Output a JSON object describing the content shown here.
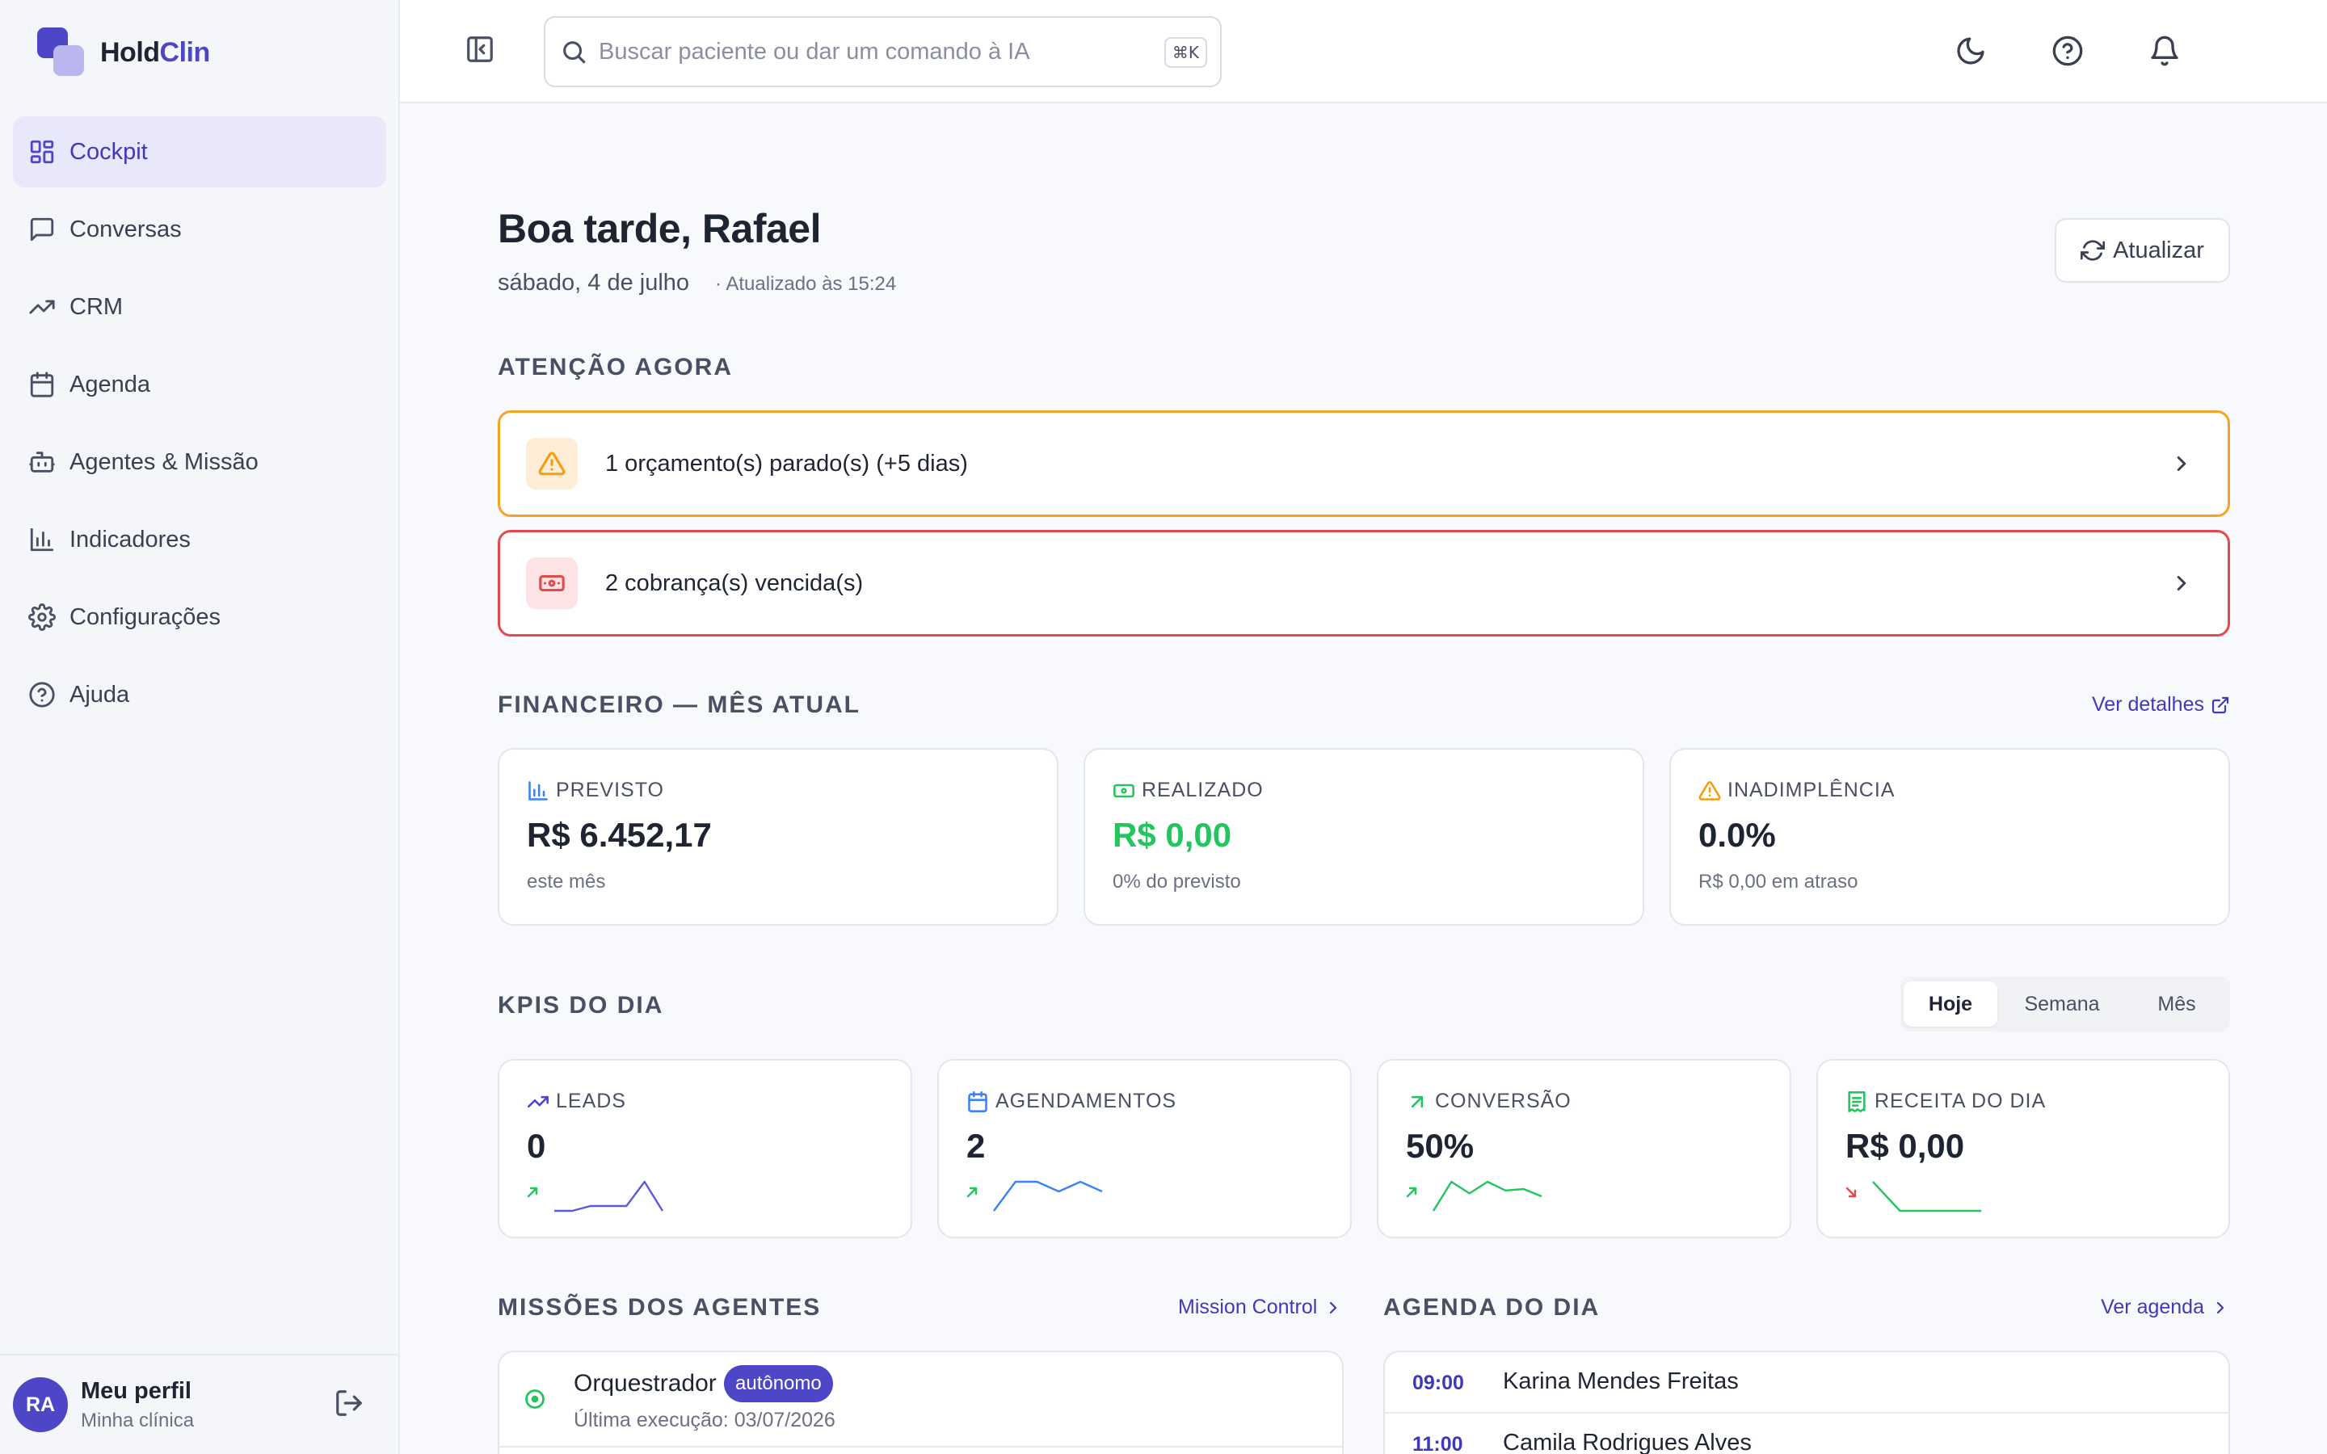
{
  "brand": {
    "name_part1": "Hold",
    "name_part2": "Clin"
  },
  "sidebar": {
    "items": [
      {
        "label": "Cockpit",
        "icon": "layout-dashboard-icon",
        "active": true
      },
      {
        "label": "Conversas",
        "icon": "message-square-icon"
      },
      {
        "label": "CRM",
        "icon": "trending-up-icon"
      },
      {
        "label": "Agenda",
        "icon": "calendar-icon"
      },
      {
        "label": "Agentes & Missão",
        "icon": "bot-icon"
      },
      {
        "label": "Indicadores",
        "icon": "bar-chart-icon"
      },
      {
        "label": "Configurações",
        "icon": "gear-icon"
      },
      {
        "label": "Ajuda",
        "icon": "help-circle-icon"
      }
    ],
    "profile": {
      "initials": "RA",
      "name": "Meu perfil",
      "clinic": "Minha clínica"
    }
  },
  "topbar": {
    "search_placeholder": "Buscar paciente ou dar um comando à IA",
    "search_value": "",
    "shortcut": "⌘K"
  },
  "header": {
    "greeting": "Boa tarde, Rafael",
    "date": "sábado, 4 de julho",
    "updated": "· Atualizado às 15:24",
    "refresh_label": "Atualizar"
  },
  "attention": {
    "title": "ATENÇÃO AGORA",
    "alerts": [
      {
        "text": "1 orçamento(s) parado(s) (+5 dias)",
        "level": "warning",
        "icon": "alert-triangle-icon"
      },
      {
        "text": "2 cobrança(s) vencida(s)",
        "level": "danger",
        "icon": "banknote-icon"
      }
    ]
  },
  "finance": {
    "title": "FINANCEIRO — MÊS ATUAL",
    "link": "Ver detalhes",
    "cards": [
      {
        "label": "PREVISTO",
        "value": "R$ 6.452,17",
        "sub": "este mês",
        "color": "#1f2433",
        "icon_color": "#3b82f6"
      },
      {
        "label": "REALIZADO",
        "value": "R$ 0,00",
        "sub": "0% do previsto",
        "color": "#22c55e",
        "icon_color": "#22c55e"
      },
      {
        "label": "INADIMPLÊNCIA",
        "value": "0.0%",
        "sub": "R$ 0,00 em atraso",
        "color": "#1f2433",
        "icon_color": "#f59e0b"
      }
    ]
  },
  "kpis": {
    "title": "KPIS DO DIA",
    "periods": [
      "Hoje",
      "Semana",
      "Mês"
    ],
    "active_period": "Hoje",
    "cards": [
      {
        "label": "LEADS",
        "value": "0",
        "icon": "trending-up-icon",
        "icon_color": "#4d47c7",
        "trend": "up",
        "spark_color": "#5b5bd6",
        "spark": [
          0,
          0,
          0.5,
          0.5,
          0.5,
          3,
          0
        ]
      },
      {
        "label": "AGENDAMENTOS",
        "value": "2",
        "icon": "calendar-icon",
        "icon_color": "#3b82f6",
        "trend": "up",
        "spark_color": "#3b82f6",
        "spark": [
          0,
          3,
          3,
          2,
          3,
          2
        ]
      },
      {
        "label": "CONVERSÃO",
        "value": "50%",
        "icon": "arrow-up-right-icon",
        "icon_color": "#22c55e",
        "trend": "up",
        "spark_color": "#22c55e",
        "spark": [
          0,
          2,
          1.2,
          2,
          1.4,
          1.5,
          1
        ]
      },
      {
        "label": "RECEITA DO DIA",
        "value": "R$ 0,00",
        "icon": "receipt-icon",
        "icon_color": "#22c55e",
        "trend": "down",
        "spark_color": "#22c55e",
        "spark": [
          3,
          0,
          0,
          0,
          0
        ]
      }
    ]
  },
  "missions": {
    "title": "MISSÕES DOS AGENTES",
    "link": "Mission Control",
    "items": [
      {
        "name": "Orquestrador",
        "badge": "autônomo",
        "last_run": "Última execução: 03/07/2026"
      }
    ]
  },
  "agenda": {
    "title": "AGENDA DO DIA",
    "link": "Ver agenda",
    "items": [
      {
        "time": "09:00",
        "name": "Karina Mendes Freitas"
      },
      {
        "time": "11:00",
        "name": "Camila Rodrigues Alves"
      }
    ]
  }
}
